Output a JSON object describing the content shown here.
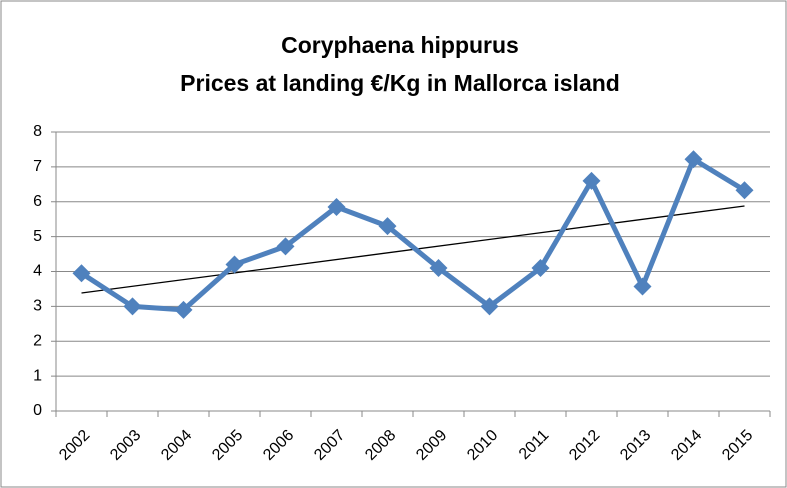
{
  "chart_data": {
    "type": "line",
    "title": [
      "Coryphaena hippurus",
      "Prices at landing €/Kg in Mallorca island"
    ],
    "categories": [
      "2002",
      "2003",
      "2004",
      "2005",
      "2006",
      "2007",
      "2008",
      "2009",
      "2010",
      "2011",
      "2012",
      "2013",
      "2014",
      "2015"
    ],
    "series": [
      {
        "name": "Prices at landing",
        "color": "#4f81bd",
        "values": [
          3.95,
          3.0,
          2.9,
          4.2,
          4.72,
          5.85,
          5.3,
          4.1,
          3.0,
          4.1,
          6.6,
          3.57,
          7.22,
          6.33
        ]
      }
    ],
    "trendline": "linear",
    "ylim": [
      0,
      8
    ],
    "yticks": [
      0,
      1,
      2,
      3,
      4,
      5,
      6,
      7,
      8
    ],
    "grid": true
  }
}
